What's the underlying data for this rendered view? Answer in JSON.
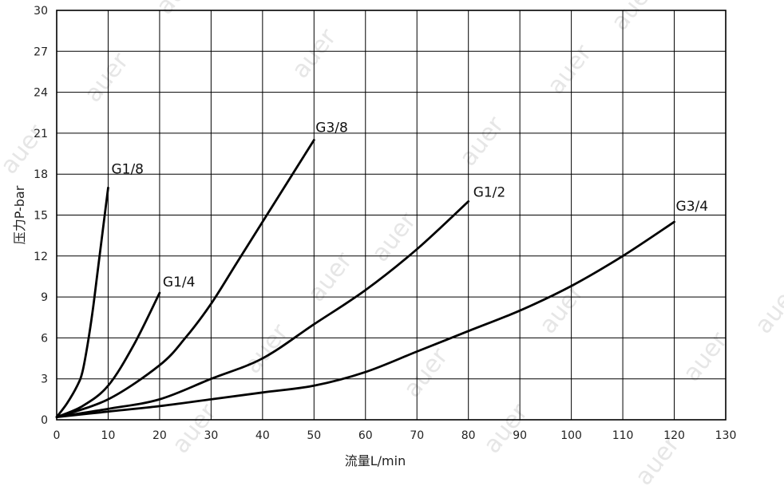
{
  "chart_data": {
    "type": "line",
    "title": "",
    "xlabel": "流量L/min",
    "ylabel": "压力P-bar",
    "xlim": [
      0,
      130
    ],
    "ylim": [
      0,
      30
    ],
    "xticks": [
      0,
      10,
      20,
      30,
      40,
      50,
      60,
      70,
      80,
      90,
      100,
      110,
      120,
      130
    ],
    "yticks": [
      0,
      3,
      6,
      9,
      12,
      15,
      18,
      21,
      24,
      27,
      30
    ],
    "grid": true,
    "legend": "none (labels at line ends)",
    "line_color": "#000000",
    "watermark": "auer",
    "series": [
      {
        "name": "G1/8",
        "points": [
          [
            0,
            0.2
          ],
          [
            2,
            1.2
          ],
          [
            4,
            2.5
          ],
          [
            5,
            3.5
          ],
          [
            6,
            5.5
          ],
          [
            7,
            8
          ],
          [
            8,
            11
          ],
          [
            9,
            14
          ],
          [
            10,
            17
          ]
        ]
      },
      {
        "name": "G1/4",
        "points": [
          [
            0,
            0.2
          ],
          [
            5,
            1
          ],
          [
            10,
            2.5
          ],
          [
            15,
            5.5
          ],
          [
            20,
            9.3
          ]
        ]
      },
      {
        "name": "G3/8",
        "points": [
          [
            0,
            0.2
          ],
          [
            10,
            1.5
          ],
          [
            20,
            4
          ],
          [
            25,
            6
          ],
          [
            30,
            8.5
          ],
          [
            35,
            11.5
          ],
          [
            40,
            14.5
          ],
          [
            45,
            17.5
          ],
          [
            50,
            20.5
          ]
        ]
      },
      {
        "name": "G1/2",
        "points": [
          [
            0,
            0.2
          ],
          [
            10,
            0.8
          ],
          [
            20,
            1.5
          ],
          [
            30,
            3
          ],
          [
            40,
            4.5
          ],
          [
            50,
            7
          ],
          [
            60,
            9.5
          ],
          [
            70,
            12.5
          ],
          [
            80,
            16
          ]
        ]
      },
      {
        "name": "G3/4",
        "points": [
          [
            0,
            0.2
          ],
          [
            10,
            0.6
          ],
          [
            20,
            1
          ],
          [
            30,
            1.5
          ],
          [
            40,
            2
          ],
          [
            50,
            2.5
          ],
          [
            60,
            3.5
          ],
          [
            70,
            5
          ],
          [
            80,
            6.5
          ],
          [
            90,
            8
          ],
          [
            100,
            9.8
          ],
          [
            110,
            12
          ],
          [
            120,
            14.5
          ]
        ]
      }
    ]
  }
}
